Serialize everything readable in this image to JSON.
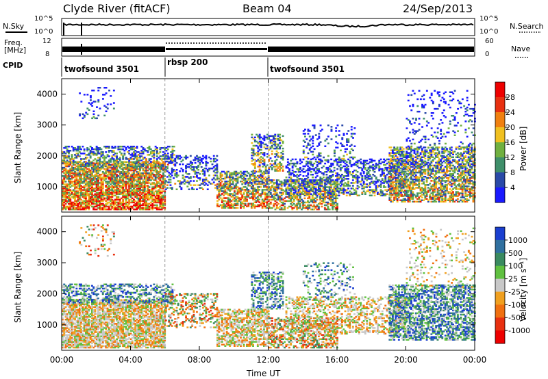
{
  "header": {
    "station": "Clyde River (fitACF)",
    "beam": "Beam 04",
    "date": "24/Sep/2013"
  },
  "status_panels": {
    "nsky_label": "N.Sky",
    "nsky_ticks": [
      "10^5",
      "10^0"
    ],
    "nsearch_label": "N.Search",
    "nsearch_ticks": [
      "10^5",
      "10^0"
    ],
    "freq_label": "Freq.",
    "freq_unit": "[MHz]",
    "freq_ticks": [
      "12",
      "8"
    ],
    "nave_label": "Nave",
    "nave_ticks": [
      "60",
      "0"
    ],
    "cpid_label": "CPID",
    "cpid_segments": [
      {
        "label": "twofsound 3501",
        "start_hour": 0,
        "end_hour": 6
      },
      {
        "label": "rbsp 200",
        "start_hour": 6,
        "end_hour": 12
      },
      {
        "label": "twofsound 3501",
        "start_hour": 12,
        "end_hour": 24
      }
    ]
  },
  "chart_data": [
    {
      "type": "heatmap",
      "title": "",
      "xlabel": "Time UT",
      "ylabel": "Slant Range [km]",
      "xlim": [
        0,
        24
      ],
      "ylim": [
        180,
        4500
      ],
      "x_ticks": [
        "00:00",
        "04:00",
        "08:00",
        "12:00",
        "16:00",
        "20:00",
        "00:00"
      ],
      "y_ticks": [
        1000,
        2000,
        3000,
        4000
      ],
      "colorbar_label": "Power [dB]",
      "colorbar_ticks": [
        4,
        8,
        12,
        16,
        20,
        24,
        28
      ],
      "colorbar_colors": [
        "#1a1aff",
        "#2a4aa8",
        "#3f8f6a",
        "#70b040",
        "#f0c020",
        "#f08010",
        "#e83010",
        "#ee0000"
      ],
      "mode_change_hours": [
        6,
        12
      ]
    },
    {
      "type": "heatmap",
      "title": "",
      "xlabel": "Time UT",
      "ylabel": "Slant Range [km]",
      "xlim": [
        0,
        24
      ],
      "ylim": [
        180,
        4500
      ],
      "x_ticks": [
        "00:00",
        "04:00",
        "08:00",
        "12:00",
        "16:00",
        "20:00",
        "00:00"
      ],
      "y_ticks": [
        1000,
        2000,
        3000,
        4000
      ],
      "colorbar_label": "Velocity [m s⁻¹]",
      "colorbar_ticks": [
        "1000",
        "500",
        "100",
        "25",
        "-25",
        "-100",
        "-500",
        "-1000"
      ],
      "colorbar_colors": [
        "#1a3fd0",
        "#3070a0",
        "#3a8a60",
        "#60c040",
        "#c8c8c8",
        "#f0a020",
        "#f07010",
        "#e83010",
        "#ee0000"
      ],
      "mode_change_hours": [
        6,
        12
      ]
    }
  ]
}
